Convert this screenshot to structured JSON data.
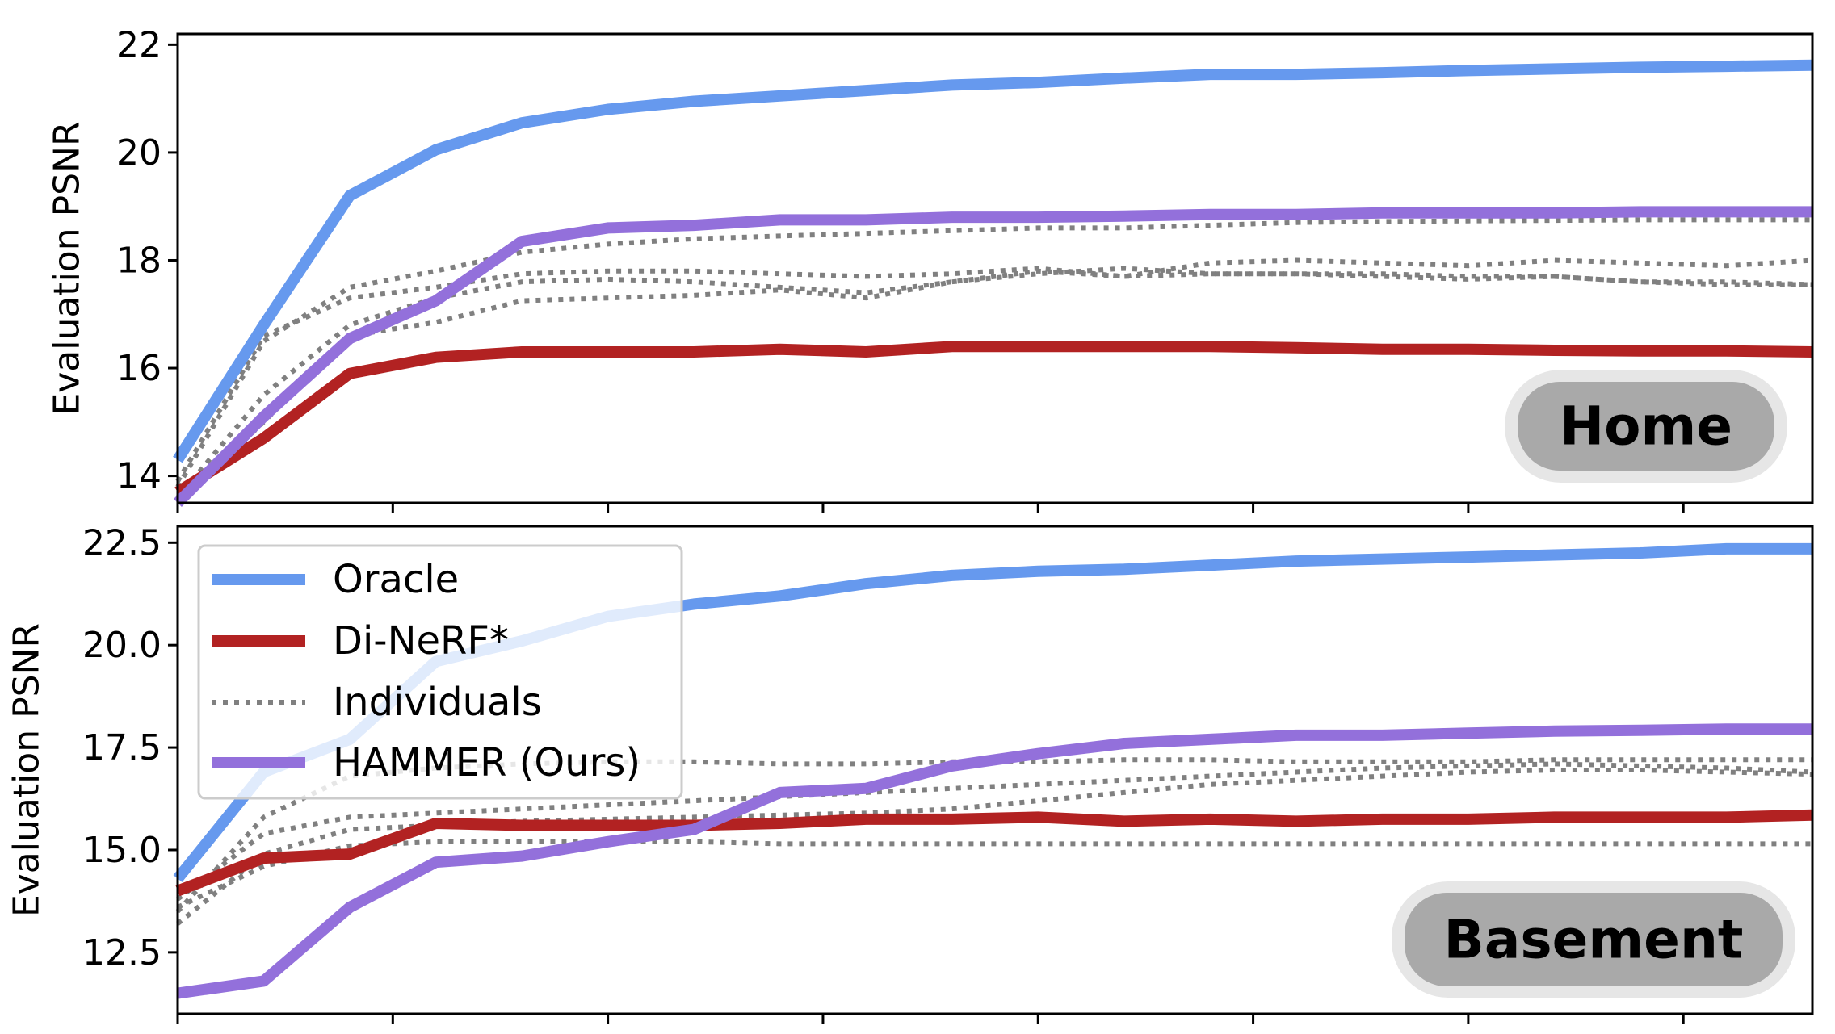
{
  "colors": {
    "oracle": "#6699ee",
    "dinerf": "#b22222",
    "individuals": "#808080",
    "hammer": "#9370db",
    "badge_fill": "#a9a9a9",
    "badge_outer": "#e6e6e6"
  },
  "legend": {
    "oracle": "Oracle",
    "dinerf": "Di-NeRF*",
    "individuals": "Individuals",
    "hammer": "HAMMER (Ours)"
  },
  "chart_data": [
    {
      "type": "line",
      "badge": "Home",
      "ylabel": "Evaluation PSNR",
      "xlim": [
        0,
        19000
      ],
      "ylim": [
        13.5,
        22.2
      ],
      "yticks": [
        "14",
        "16",
        "18",
        "20",
        "22"
      ],
      "x": [
        0,
        1000,
        2000,
        3000,
        4000,
        5000,
        6000,
        7000,
        8000,
        9000,
        10000,
        11000,
        12000,
        13000,
        14000,
        15000,
        16000,
        17000,
        18000,
        19000
      ],
      "series": [
        {
          "key": "oracle",
          "name": "Oracle",
          "style": "solid",
          "values": [
            14.3,
            16.8,
            19.2,
            20.05,
            20.55,
            20.8,
            20.95,
            21.05,
            21.15,
            21.25,
            21.3,
            21.38,
            21.45,
            21.45,
            21.48,
            21.52,
            21.55,
            21.58,
            21.6,
            21.62
          ]
        },
        {
          "key": "dinerf",
          "name": "Di-NeRF*",
          "style": "solid",
          "values": [
            13.7,
            14.7,
            15.9,
            16.2,
            16.3,
            16.3,
            16.3,
            16.35,
            16.3,
            16.4,
            16.4,
            16.4,
            16.4,
            16.38,
            16.35,
            16.35,
            16.33,
            16.32,
            16.32,
            16.3
          ]
        },
        {
          "key": "individuals",
          "name": "Individuals",
          "style": "dotted",
          "values": [
            13.8,
            16.5,
            17.5,
            17.8,
            18.15,
            18.3,
            18.4,
            18.45,
            18.5,
            18.55,
            18.6,
            18.6,
            18.65,
            18.7,
            18.72,
            18.73,
            18.74,
            18.75,
            18.75,
            18.75
          ]
        },
        {
          "key": "individuals",
          "name": "",
          "style": "dotted",
          "values": [
            13.9,
            16.6,
            17.3,
            17.5,
            17.75,
            17.8,
            17.8,
            17.75,
            17.7,
            17.75,
            17.85,
            17.7,
            17.75,
            17.75,
            17.7,
            17.65,
            17.7,
            17.6,
            17.55,
            17.55
          ]
        },
        {
          "key": "individuals",
          "name": "",
          "style": "dotted",
          "values": [
            13.6,
            15.5,
            16.8,
            17.3,
            17.6,
            17.65,
            17.6,
            17.5,
            17.4,
            17.6,
            17.8,
            17.7,
            17.95,
            18.0,
            17.95,
            17.9,
            18.0,
            17.95,
            17.9,
            18.0
          ]
        },
        {
          "key": "individuals",
          "name": "",
          "style": "dotted",
          "values": [
            13.5,
            15.0,
            16.6,
            16.85,
            17.25,
            17.3,
            17.35,
            17.45,
            17.3,
            17.6,
            17.75,
            17.85,
            17.75,
            17.75,
            17.75,
            17.7,
            17.7,
            17.6,
            17.6,
            17.55
          ]
        },
        {
          "key": "hammer",
          "name": "HAMMER (Ours)",
          "style": "solid",
          "values": [
            13.5,
            15.1,
            16.55,
            17.25,
            18.35,
            18.6,
            18.65,
            18.75,
            18.75,
            18.8,
            18.8,
            18.82,
            18.85,
            18.85,
            18.88,
            18.88,
            18.88,
            18.9,
            18.9,
            18.9
          ]
        }
      ]
    },
    {
      "type": "line",
      "badge": "Basement",
      "ylabel": "Evaluation PSNR",
      "xlim": [
        0,
        19000
      ],
      "ylim": [
        11.0,
        22.9
      ],
      "yticks": [
        "12.5",
        "15.0",
        "17.5",
        "20.0",
        "22.5"
      ],
      "xticks": [
        "0",
        "2500",
        "5000",
        "7500",
        "10000",
        "12500",
        "15000",
        "17500"
      ],
      "x": [
        0,
        1000,
        2000,
        3000,
        4000,
        5000,
        6000,
        7000,
        8000,
        9000,
        10000,
        11000,
        12000,
        13000,
        14000,
        15000,
        16000,
        17000,
        18000,
        19000
      ],
      "series": [
        {
          "key": "oracle",
          "name": "Oracle",
          "style": "solid",
          "values": [
            14.3,
            16.9,
            17.7,
            19.6,
            20.1,
            20.7,
            21.0,
            21.2,
            21.5,
            21.7,
            21.8,
            21.85,
            21.95,
            22.05,
            22.1,
            22.15,
            22.2,
            22.25,
            22.35,
            22.35
          ]
        },
        {
          "key": "dinerf",
          "name": "Di-NeRF*",
          "style": "solid",
          "values": [
            14.0,
            14.8,
            14.9,
            15.65,
            15.6,
            15.6,
            15.6,
            15.65,
            15.75,
            15.75,
            15.8,
            15.7,
            15.75,
            15.7,
            15.75,
            15.75,
            15.8,
            15.8,
            15.8,
            15.85
          ]
        },
        {
          "key": "individuals",
          "name": "Individuals",
          "style": "dotted",
          "values": [
            13.5,
            15.8,
            16.8,
            17.0,
            17.1,
            17.15,
            17.15,
            17.1,
            17.1,
            17.15,
            17.15,
            17.2,
            17.2,
            17.15,
            17.15,
            17.15,
            17.2,
            17.2,
            17.2,
            17.2
          ]
        },
        {
          "key": "individuals",
          "name": "",
          "style": "dotted",
          "values": [
            13.8,
            15.4,
            15.8,
            15.9,
            16.0,
            16.1,
            16.2,
            16.3,
            16.4,
            16.5,
            16.6,
            16.7,
            16.8,
            16.9,
            17.0,
            17.05,
            17.1,
            17.05,
            17.0,
            16.9
          ]
        },
        {
          "key": "individuals",
          "name": "",
          "style": "dotted",
          "values": [
            13.2,
            14.9,
            15.5,
            15.6,
            15.7,
            15.75,
            15.8,
            15.85,
            15.9,
            16.0,
            16.2,
            16.4,
            16.6,
            16.7,
            16.8,
            16.9,
            16.95,
            16.95,
            16.9,
            16.85
          ]
        },
        {
          "key": "individuals",
          "name": "",
          "style": "dotted",
          "values": [
            13.6,
            14.6,
            15.1,
            15.2,
            15.2,
            15.2,
            15.2,
            15.15,
            15.15,
            15.15,
            15.15,
            15.15,
            15.15,
            15.15,
            15.15,
            15.15,
            15.15,
            15.15,
            15.15,
            15.15
          ]
        },
        {
          "key": "hammer",
          "name": "HAMMER (Ours)",
          "style": "solid",
          "values": [
            11.5,
            11.8,
            13.6,
            14.7,
            14.85,
            15.2,
            15.5,
            16.4,
            16.5,
            17.05,
            17.35,
            17.6,
            17.7,
            17.8,
            17.8,
            17.85,
            17.9,
            17.92,
            17.95,
            17.95
          ]
        }
      ]
    }
  ]
}
